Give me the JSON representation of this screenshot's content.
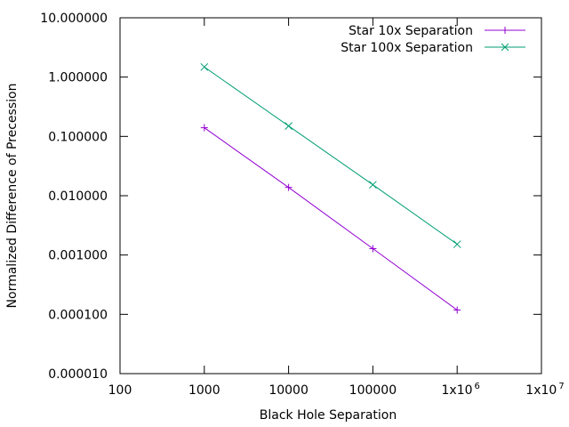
{
  "chart_data": {
    "type": "line",
    "title": "",
    "xlabel": "Black Hole Separation",
    "ylabel": "Normalized Difference of Precession",
    "xscale": "log",
    "yscale": "log",
    "xlim": [
      100,
      10000000
    ],
    "ylim": [
      1e-05,
      10
    ],
    "x_ticks": [
      {
        "value": 100,
        "label": "100"
      },
      {
        "value": 1000,
        "label": "1000"
      },
      {
        "value": 10000,
        "label": "10000"
      },
      {
        "value": 100000,
        "label": "100000"
      },
      {
        "value": 1000000,
        "label": "1x10",
        "exponent": "6"
      },
      {
        "value": 10000000,
        "label": "1x10",
        "exponent": "7"
      }
    ],
    "y_ticks": [
      {
        "value": 1e-05,
        "label": "0.000010"
      },
      {
        "value": 0.0001,
        "label": "0.000100"
      },
      {
        "value": 0.001,
        "label": "0.001000"
      },
      {
        "value": 0.01,
        "label": "0.010000"
      },
      {
        "value": 0.1,
        "label": "0.100000"
      },
      {
        "value": 1,
        "label": "1.000000"
      },
      {
        "value": 10,
        "label": "10.000000"
      }
    ],
    "grid": false,
    "legend_position": "top-right",
    "x": [
      1000,
      10000,
      100000,
      1000000
    ],
    "series": [
      {
        "name": "Star 10x Separation",
        "marker": "plus",
        "color": "#9400D3",
        "values": [
          0.14,
          0.0138,
          0.00128,
          0.000118
        ]
      },
      {
        "name": "Star 100x Separation",
        "marker": "cross",
        "color": "#009E73",
        "values": [
          1.48,
          0.15,
          0.0153,
          0.00152
        ]
      }
    ]
  }
}
